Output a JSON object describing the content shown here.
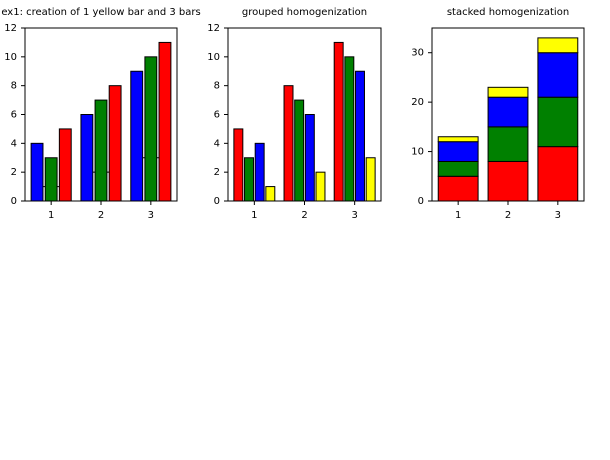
{
  "chart_data": [
    {
      "type": "bar",
      "title": "ex1: creation of 1 yellow bar and 3 bars",
      "categories": [
        "1",
        "2",
        "3"
      ],
      "series": [
        {
          "color": "#ffff00",
          "values": [
            1,
            2,
            3
          ],
          "style": "top-edge"
        },
        {
          "color": "#0000ff",
          "values": [
            4,
            6,
            9
          ]
        },
        {
          "color": "#008000",
          "values": [
            3,
            7,
            10
          ]
        },
        {
          "color": "#ff0000",
          "values": [
            5,
            8,
            11
          ]
        }
      ],
      "ylim": [
        0,
        12
      ],
      "yticks": [
        0,
        2,
        4,
        6,
        8,
        10,
        12
      ]
    },
    {
      "type": "bar",
      "title": "grouped homogenization",
      "categories": [
        "1",
        "2",
        "3"
      ],
      "series": [
        {
          "color": "#ff0000",
          "values": [
            5,
            8,
            11
          ]
        },
        {
          "color": "#008000",
          "values": [
            3,
            7,
            10
          ]
        },
        {
          "color": "#0000ff",
          "values": [
            4,
            6,
            9
          ]
        },
        {
          "color": "#ffff00",
          "values": [
            1,
            2,
            3
          ]
        }
      ],
      "ylim": [
        0,
        12
      ],
      "yticks": [
        0,
        2,
        4,
        6,
        8,
        10,
        12
      ]
    },
    {
      "type": "stacked-bar",
      "title": "stacked homogenization",
      "categories": [
        "1",
        "2",
        "3"
      ],
      "series": [
        {
          "color": "#ff0000",
          "values": [
            5,
            8,
            11
          ]
        },
        {
          "color": "#008000",
          "values": [
            3,
            7,
            10
          ]
        },
        {
          "color": "#0000ff",
          "values": [
            4,
            6,
            9
          ]
        },
        {
          "color": "#ffff00",
          "values": [
            1,
            2,
            3
          ]
        }
      ],
      "ylim": [
        0,
        35
      ],
      "yticks": [
        0,
        10,
        20,
        30
      ]
    }
  ]
}
